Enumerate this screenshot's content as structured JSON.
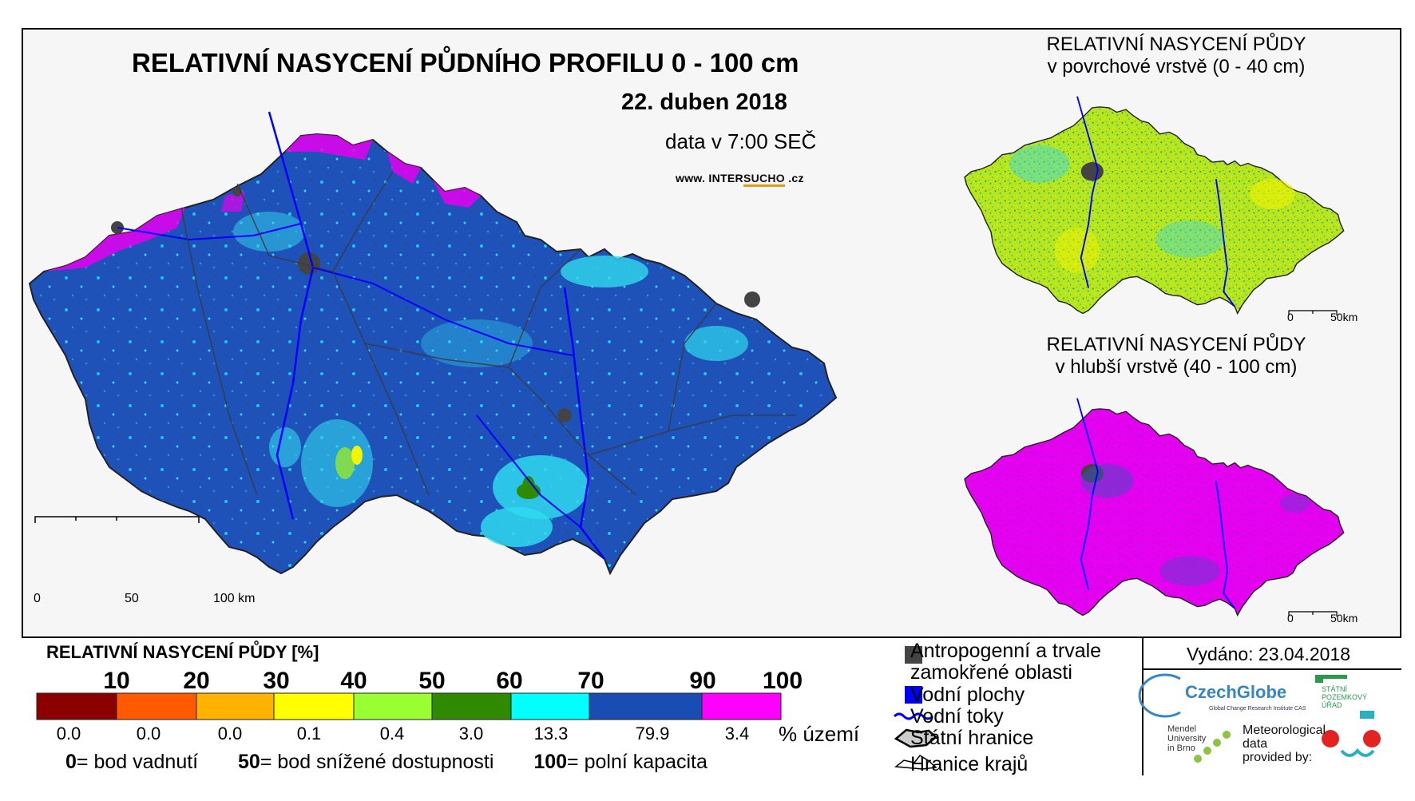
{
  "map": {
    "title": "RELATIVNÍ NASYCENÍ PŮDNÍHO PROFILU 0 - 100 cm",
    "date": "22. duben 2018",
    "time": "data v 7:00 SEČ",
    "website_prefix": "www. INTER",
    "website_accent": "SUCHO",
    "website_suffix": " .cz",
    "scale": {
      "zero": "0",
      "mid": "50",
      "max": "100 km"
    }
  },
  "insets": [
    {
      "title_line1": "RELATIVNÍ NASYCENÍ PŮDY",
      "title_line2": "v povrchové vrstvě (0 - 40 cm)",
      "scale_zero": "0",
      "scale_max": "50km",
      "dominant_color": "#9be33a"
    },
    {
      "title_line1": "RELATIVNÍ NASYCENÍ PŮDY",
      "title_line2": "v hlubší vrstvě (40 - 100 cm)",
      "scale_zero": "0",
      "scale_max": "50km",
      "dominant_color": "#e600f0"
    }
  ],
  "legend": {
    "title": "RELATIVNÍ NASYCENÍ PŮDY [%]",
    "ticks": [
      "10",
      "20",
      "30",
      "40",
      "50",
      "60",
      "70",
      "90",
      "100"
    ],
    "classes": [
      {
        "color": "#8b0000",
        "pct": "0.0"
      },
      {
        "color": "#ff5a00",
        "pct": "0.0"
      },
      {
        "color": "#ffb200",
        "pct": "0.0"
      },
      {
        "color": "#ffff00",
        "pct": "0.1"
      },
      {
        "color": "#99ff33",
        "pct": "0.4"
      },
      {
        "color": "#2f8a00",
        "pct": "3.0"
      },
      {
        "color": "#00ffff",
        "pct": "13.3"
      },
      {
        "color": "#1a4db3",
        "pct": "79.9"
      },
      {
        "color": "#ff00ff",
        "pct": "3.4"
      }
    ],
    "pct_unit": "% území",
    "def0_num": "0",
    "def0_text": "= bod vadnutí",
    "def50_num": "50",
    "def50_text": "= bod snížené dostupnosti",
    "def100_num": "100",
    "def100_text": "= polní kapacita"
  },
  "key": {
    "anthro_line1": "Antropogenní a trvale",
    "anthro_line2": "zamokřené oblasti",
    "water": "Vodní plochy",
    "rivers": "Vodní toky",
    "state_border": "Státní hranice",
    "region_border": "Hranice krajů"
  },
  "issued": "Vydáno: 23.04.2018",
  "logos": {
    "czechglobe": "CzechGlobe",
    "czechglobe_sub": "Global Change Research Institute CAS",
    "spu_line1": "STÁTNÍ",
    "spu_line2": "POZEMKOVÝ",
    "spu_line3": "ÚŘAD",
    "mendel_line1": "Mendel",
    "mendel_line2": "University",
    "mendel_line3": "in Brno",
    "meteo_line1": "Meteorological",
    "meteo_line2": "data",
    "meteo_line3": "provided by:"
  }
}
